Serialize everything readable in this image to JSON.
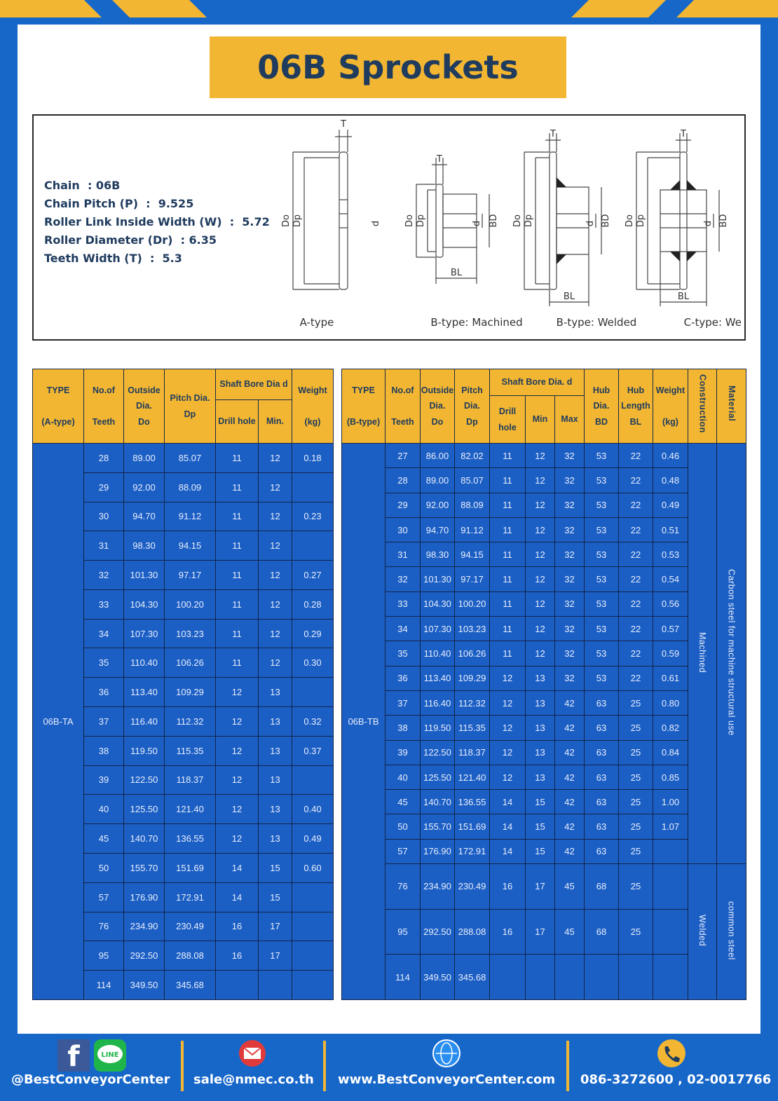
{
  "header": {
    "title": "06B Sprockets"
  },
  "specs": [
    "Chain  : 06B",
    "Chain Pitch (P)  :  9.525",
    "Roller Link Inside Width (W)  :  5.72",
    "Roller Diameter (Dr)  : 6.35",
    "Teeth Width (T)  :  5.3"
  ],
  "diagram": {
    "dims": {
      "T": "T",
      "Do": "Do",
      "Dp": "Dp",
      "d": "d",
      "BD": "BD",
      "BL": "BL"
    },
    "captions": [
      "A-type",
      "B-type: Machined",
      "B-type: Welded",
      "C-type: Welded"
    ]
  },
  "table_a": {
    "headers": {
      "type": [
        "TYPE",
        "(A-type)"
      ],
      "teeth": [
        "No.of",
        "Teeth"
      ],
      "do": [
        "Outside",
        "Dia.",
        "Do"
      ],
      "dp": [
        "Pitch Dia.",
        "Dp"
      ],
      "bore": "Shaft Bore Dia d",
      "drill": "Drill hole",
      "min": "Min.",
      "weight": [
        "Weight",
        "(kg)"
      ]
    },
    "type": "06B-TA",
    "rows": [
      [
        "28",
        "89.00",
        "85.07",
        "11",
        "12",
        "0.18"
      ],
      [
        "29",
        "92.00",
        "88.09",
        "11",
        "12",
        null
      ],
      [
        "30",
        "94.70",
        "91.12",
        "11",
        "12",
        "0.23"
      ],
      [
        "31",
        "98.30",
        "94.15",
        "11",
        "12",
        null
      ],
      [
        "32",
        "101.30",
        "97.17",
        "11",
        "12",
        "0.27"
      ],
      [
        "33",
        "104.30",
        "100.20",
        "11",
        "12",
        "0.28"
      ],
      [
        "34",
        "107.30",
        "103.23",
        "11",
        "12",
        "0.29"
      ],
      [
        "35",
        "110.40",
        "106.26",
        "11",
        "12",
        "0.30"
      ],
      [
        "36",
        "113.40",
        "109.29",
        "12",
        "13",
        null
      ],
      [
        "37",
        "116.40",
        "112.32",
        "12",
        "13",
        "0.32"
      ],
      [
        "38",
        "119.50",
        "115.35",
        "12",
        "13",
        "0.37"
      ],
      [
        "39",
        "122.50",
        "118.37",
        "12",
        "13",
        null
      ],
      [
        "40",
        "125.50",
        "121.40",
        "12",
        "13",
        "0.40"
      ],
      [
        "45",
        "140.70",
        "136.55",
        "12",
        "13",
        "0.49"
      ],
      [
        "50",
        "155.70",
        "151.69",
        "14",
        "15",
        "0.60"
      ],
      [
        "57",
        "176.90",
        "172.91",
        "14",
        "15",
        null
      ],
      [
        "76",
        "234.90",
        "230.49",
        "16",
        "17",
        null
      ],
      [
        "95",
        "292.50",
        "288.08",
        "16",
        "17",
        null
      ],
      [
        "114",
        "349.50",
        "345.68",
        null,
        null,
        null
      ]
    ]
  },
  "table_b": {
    "headers": {
      "type": [
        "TYPE",
        "(B-type)"
      ],
      "teeth": [
        "No.of",
        "Teeth"
      ],
      "do": [
        "Outside",
        "Dia.",
        "Do"
      ],
      "dp": [
        "Pitch",
        "Dia.",
        "Dp"
      ],
      "bore": "Shaft Bore Dia. d",
      "drill": "Drill hole",
      "min": "Min",
      "max": "Max",
      "hub_dia": [
        "Hub",
        "Dia.",
        "BD"
      ],
      "hub_len": [
        "Hub",
        "Length",
        "BL"
      ],
      "weight": [
        "Weight",
        "(kg)"
      ],
      "construction": "Construction",
      "material": "Material"
    },
    "type": "06B-TB",
    "rows": [
      [
        "27",
        "86.00",
        "82.02",
        "11",
        "12",
        "32",
        "53",
        "22",
        "0.46"
      ],
      [
        "28",
        "89.00",
        "85.07",
        "11",
        "12",
        "32",
        "53",
        "22",
        "0.48"
      ],
      [
        "29",
        "92.00",
        "88.09",
        "11",
        "12",
        "32",
        "53",
        "22",
        "0.49"
      ],
      [
        "30",
        "94.70",
        "91.12",
        "11",
        "12",
        "32",
        "53",
        "22",
        "0.51"
      ],
      [
        "31",
        "98.30",
        "94.15",
        "11",
        "12",
        "32",
        "53",
        "22",
        "0.53"
      ],
      [
        "32",
        "101.30",
        "97.17",
        "11",
        "12",
        "32",
        "53",
        "22",
        "0.54"
      ],
      [
        "33",
        "104.30",
        "100.20",
        "11",
        "12",
        "32",
        "53",
        "22",
        "0.56"
      ],
      [
        "34",
        "107.30",
        "103.23",
        "11",
        "12",
        "32",
        "53",
        "22",
        "0.57"
      ],
      [
        "35",
        "110.40",
        "106.26",
        "11",
        "12",
        "32",
        "53",
        "22",
        "0.59"
      ],
      [
        "36",
        "113.40",
        "109.29",
        "12",
        "13",
        "32",
        "53",
        "22",
        "0.61"
      ],
      [
        "37",
        "116.40",
        "112.32",
        "12",
        "13",
        "42",
        "63",
        "25",
        "0.80"
      ],
      [
        "38",
        "119.50",
        "115.35",
        "12",
        "13",
        "42",
        "63",
        "25",
        "0.82"
      ],
      [
        "39",
        "122.50",
        "118.37",
        "12",
        "13",
        "42",
        "63",
        "25",
        "0.84"
      ],
      [
        "40",
        "125.50",
        "121.40",
        "12",
        "13",
        "42",
        "63",
        "25",
        "0.85"
      ],
      [
        "45",
        "140.70",
        "136.55",
        "14",
        "15",
        "42",
        "63",
        "25",
        "1.00"
      ],
      [
        "50",
        "155.70",
        "151.69",
        "14",
        "15",
        "42",
        "63",
        "25",
        "1.07"
      ],
      [
        "57",
        "176.90",
        "172.91",
        "14",
        "15",
        "42",
        "63",
        "25",
        null
      ],
      [
        "76",
        "234.90",
        "230.49",
        "16",
        "17",
        "45",
        "68",
        "25",
        null
      ],
      [
        "95",
        "292.50",
        "288.08",
        "16",
        "17",
        "45",
        "68",
        "25",
        null
      ],
      [
        "114",
        "349.50",
        "345.68",
        null,
        null,
        null,
        null,
        null,
        null
      ]
    ],
    "construction": [
      "Machined",
      "Welded"
    ],
    "material": [
      "Carbon steel for machine structural use",
      "common steel"
    ]
  },
  "footer": {
    "line_icon": "LINE",
    "facebook": "@BestConveyorCenter",
    "email": "sale@nmec.co.th",
    "website": "www.BestConveyorCenter.com",
    "phone": "086-3272600 , 02-0017766"
  }
}
